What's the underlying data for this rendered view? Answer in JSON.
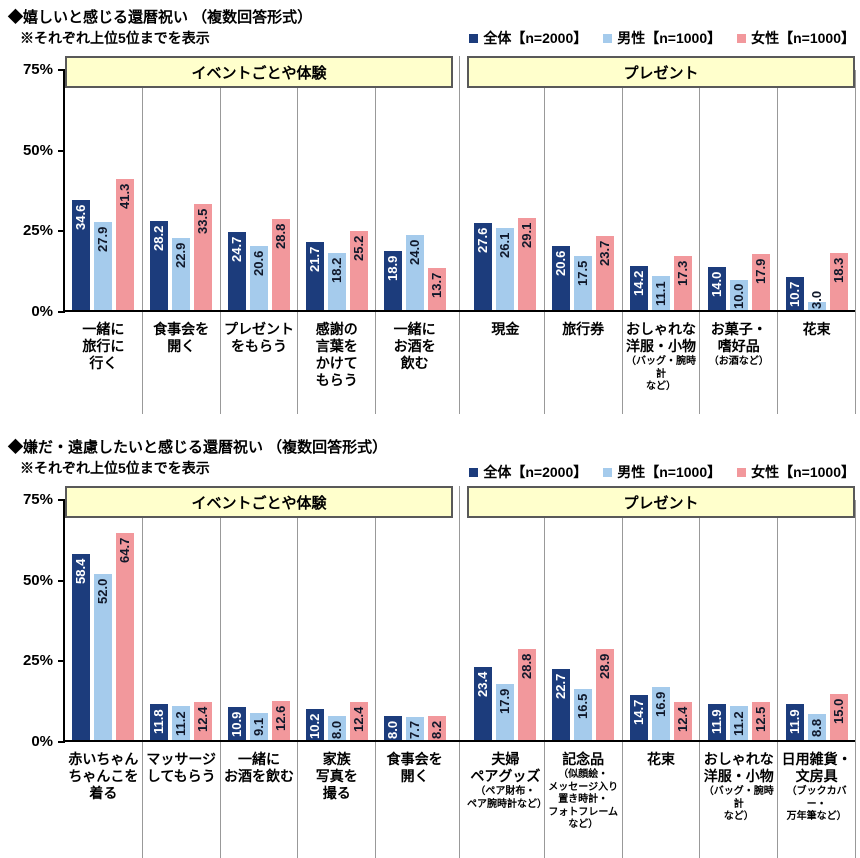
{
  "colors": {
    "series": [
      "#1c3c7c",
      "#a5cbec",
      "#f2989c"
    ],
    "value_label_on_dark": "#ffffff",
    "value_label_on_light": "#10182a",
    "band_bg": "#ffffcc",
    "band_border": "#595959",
    "axis": "#000000",
    "separator": "#999999"
  },
  "series_keys": [
    "total",
    "male",
    "female"
  ],
  "chart_data": [
    {
      "type": "bar",
      "title": "◆嬉しいと感じる還暦祝い （複数回答形式）",
      "subtitle": "※それぞれ上位5位までを表示",
      "ylabel": "",
      "xlabel": "",
      "ylim": [
        0,
        75
      ],
      "y_ticks": [
        "75%",
        "50%",
        "25%",
        "0%"
      ],
      "grid": false,
      "legend_position": "top-right",
      "series_names": [
        "全体【n=2000】",
        "男性【n=1000】",
        "女性【n=1000】"
      ],
      "groups": [
        {
          "header": "イベントごとや体験",
          "categories": [
            {
              "label": "一緒に\n旅行に\n行く",
              "values": [
                34.6,
                27.9,
                41.3
              ]
            },
            {
              "label": "食事会を\n開く",
              "values": [
                28.2,
                22.9,
                33.5
              ]
            },
            {
              "label": "プレゼント\nをもらう",
              "values": [
                24.7,
                20.6,
                28.8
              ]
            },
            {
              "label": "感謝の\n言葉を\nかけて\nもらう",
              "values": [
                21.7,
                18.2,
                25.2
              ]
            },
            {
              "label": "一緒に\nお酒を\n飲む",
              "values": [
                18.9,
                24.0,
                13.7
              ]
            }
          ]
        },
        {
          "header": "プレゼント",
          "categories": [
            {
              "label": "現金",
              "values": [
                27.6,
                26.1,
                29.1
              ]
            },
            {
              "label": "旅行券",
              "values": [
                20.6,
                17.5,
                23.7
              ]
            },
            {
              "label": "おしゃれな\n洋服・小物",
              "sub": "（バッグ・腕時計\nなど）",
              "values": [
                14.2,
                11.1,
                17.3
              ]
            },
            {
              "label": "お菓子・\n嗜好品",
              "sub": "（お酒など）",
              "values": [
                14.0,
                10.0,
                17.9
              ]
            },
            {
              "label": "花束",
              "values": [
                10.7,
                3.0,
                18.3
              ]
            }
          ]
        }
      ]
    },
    {
      "type": "bar",
      "title": "◆嫌だ・遠慮したいと感じる還暦祝い （複数回答形式）",
      "subtitle": "※それぞれ上位5位までを表示",
      "ylabel": "",
      "xlabel": "",
      "ylim": [
        0,
        75
      ],
      "y_ticks": [
        "75%",
        "50%",
        "25%",
        "0%"
      ],
      "grid": false,
      "legend_position": "top-right",
      "series_names": [
        "全体【n=2000】",
        "男性【n=1000】",
        "女性【n=1000】"
      ],
      "groups": [
        {
          "header": "イベントごとや体験",
          "categories": [
            {
              "label": "赤いちゃん\nちゃんこを\n着る",
              "values": [
                58.4,
                52.0,
                64.7
              ]
            },
            {
              "label": "マッサージ\nしてもらう",
              "values": [
                11.8,
                11.2,
                12.4
              ]
            },
            {
              "label": "一緒に\nお酒を飲む",
              "values": [
                10.9,
                9.1,
                12.6
              ]
            },
            {
              "label": "家族\n写真を\n撮る",
              "values": [
                10.2,
                8.0,
                12.4
              ]
            },
            {
              "label": "食事会を\n開く",
              "values": [
                8.0,
                7.7,
                8.2
              ]
            }
          ]
        },
        {
          "header": "プレゼント",
          "categories": [
            {
              "label": "夫婦\nペアグッズ",
              "sub": "（ペア財布・\nペア腕時計など）",
              "values": [
                23.4,
                17.9,
                28.8
              ]
            },
            {
              "label": "記念品",
              "sub": "（似顔絵・\nメッセージ入り\n置き時計・\nフォトフレーム\nなど）",
              "values": [
                22.7,
                16.5,
                28.9
              ]
            },
            {
              "label": "花束",
              "values": [
                14.7,
                16.9,
                12.4
              ]
            },
            {
              "label": "おしゃれな\n洋服・小物",
              "sub": "（バッグ・腕時計\nなど）",
              "values": [
                11.9,
                11.2,
                12.5
              ]
            },
            {
              "label": "日用雑貨・\n文房具",
              "sub": "（ブックカバー・\n万年筆など）",
              "values": [
                11.9,
                8.8,
                15.0
              ]
            }
          ]
        }
      ]
    }
  ]
}
